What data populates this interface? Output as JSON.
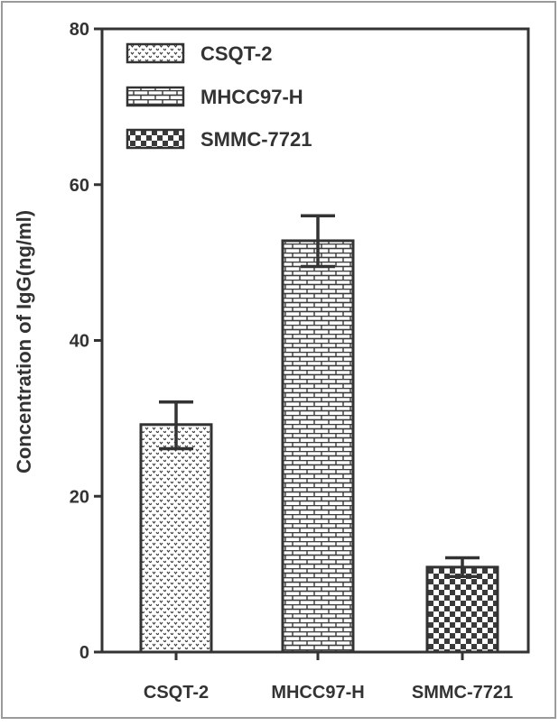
{
  "chart_data": {
    "type": "bar",
    "title": "",
    "xlabel": "",
    "ylabel": "Concentration of IgG(ng/ml)",
    "ylim": [
      0,
      80
    ],
    "yticks": [
      0,
      20,
      40,
      60,
      80
    ],
    "categories": [
      "CSQT-2",
      "MHCC97-H",
      "SMMC-7721"
    ],
    "values": [
      29.2,
      52.8,
      10.9
    ],
    "error_upper": [
      32.1,
      56.0,
      12.1
    ],
    "error_lower": [
      26.1,
      49.5,
      9.7
    ],
    "grid": false,
    "legend": {
      "placement": "top-left",
      "entries": [
        {
          "label": "CSQT-2",
          "pattern": "dots"
        },
        {
          "label": "MHCC97-H",
          "pattern": "bricks"
        },
        {
          "label": "SMMC-7721",
          "pattern": "checker"
        }
      ]
    },
    "colors": {
      "axis": "#333333",
      "frame": "#9a9a9a",
      "pattern": "#3a3a3a",
      "background": "#ffffff"
    }
  }
}
